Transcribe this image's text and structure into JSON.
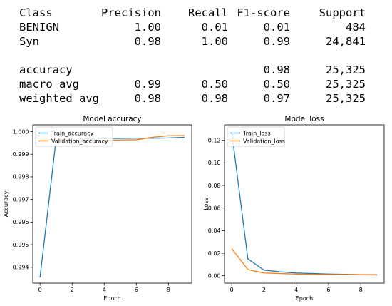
{
  "report": {
    "header": [
      "Class",
      "Precision",
      "Recall",
      "F1-score",
      "Support"
    ],
    "rows": [
      [
        "BENIGN",
        "1.00",
        "0.01",
        "0.01",
        "484"
      ],
      [
        "Syn",
        "0.98",
        "1.00",
        "0.99",
        "24,841"
      ],
      [
        "",
        "",
        "",
        "",
        ""
      ],
      [
        "accuracy",
        "",
        "",
        "0.98",
        "25,325"
      ],
      [
        "macro avg",
        "0.99",
        "0.50",
        "0.50",
        "25,325"
      ],
      [
        "weighted avg",
        "0.98",
        "0.98",
        "0.97",
        "25,325"
      ]
    ]
  },
  "chart_data": [
    {
      "type": "line",
      "title": "Model accuracy",
      "xlabel": "Epoch",
      "ylabel": "Accuracy",
      "xlim": [
        -0.45,
        9.45
      ],
      "ylim": [
        0.9933,
        1.0003
      ],
      "xticks": [
        0,
        2,
        4,
        6,
        8
      ],
      "yticks": [
        0.994,
        0.995,
        0.996,
        0.997,
        0.998,
        0.999,
        1.0
      ],
      "ytick_labels": [
        "0.994",
        "0.995",
        "0.996",
        "0.997",
        "0.998",
        "0.999",
        "1.000"
      ],
      "legend": "upper-left",
      "x": [
        0,
        1,
        2,
        3,
        4,
        5,
        6,
        7,
        8,
        9
      ],
      "series": [
        {
          "name": "Train_accuracy",
          "color": "#1f77b4",
          "values": [
            0.99355,
            0.99965,
            0.99966,
            0.99967,
            0.9997,
            0.9997,
            0.99971,
            0.99971,
            0.99972,
            0.99975
          ]
        },
        {
          "name": "Validation_accuracy",
          "color": "#ff7f0e",
          "values": [
            0.99965,
            0.99965,
            0.99964,
            0.99963,
            0.99962,
            0.99963,
            0.99964,
            0.99975,
            0.99982,
            0.99983
          ]
        }
      ]
    },
    {
      "type": "line",
      "title": "Model loss",
      "xlabel": "Epoch",
      "ylabel": "Loss",
      "xlim": [
        -0.45,
        9.45
      ],
      "ylim": [
        -0.0065,
        0.1337
      ],
      "xticks": [
        0,
        2,
        4,
        6,
        8
      ],
      "yticks": [
        0.0,
        0.02,
        0.04,
        0.06,
        0.08,
        0.1,
        0.12
      ],
      "ytick_labels": [
        "0.00",
        "0.02",
        "0.04",
        "0.06",
        "0.08",
        "0.10",
        "0.12"
      ],
      "legend": "upper-left",
      "x": [
        0,
        1,
        2,
        3,
        4,
        5,
        6,
        7,
        8,
        9
      ],
      "series": [
        {
          "name": "Train_loss",
          "color": "#1f77b4",
          "values": [
            0.127,
            0.015,
            0.005,
            0.0035,
            0.0025,
            0.002,
            0.0015,
            0.0013,
            0.001,
            0.0009
          ]
        },
        {
          "name": "Validation_loss",
          "color": "#ff7f0e",
          "values": [
            0.024,
            0.0055,
            0.0025,
            0.002,
            0.0015,
            0.0012,
            0.0011,
            0.001,
            0.0008,
            0.0007
          ]
        }
      ]
    }
  ]
}
